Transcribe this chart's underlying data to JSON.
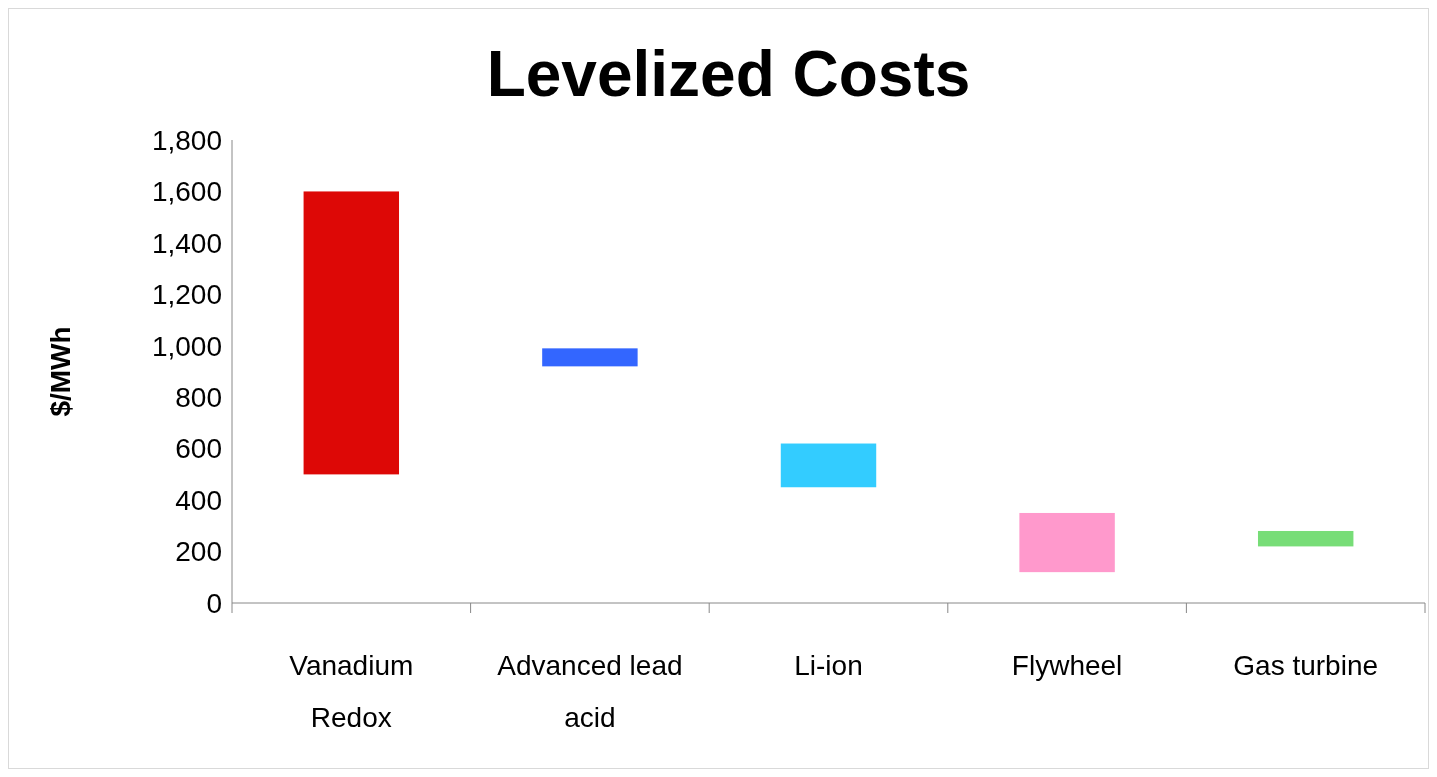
{
  "chart_data": {
    "type": "bar",
    "title": "Levelized Costs",
    "ylabel": "$/MWh",
    "categories": [
      "Vanadium Redox",
      "Advanced lead acid",
      "Li-ion",
      "Flywheel",
      "Gas turbine"
    ],
    "base": [
      500,
      920,
      450,
      120,
      220
    ],
    "values": [
      1100,
      70,
      170,
      230,
      60
    ],
    "colors": [
      "#dd0806",
      "#3366ff",
      "#33ccff",
      "#ff99cc",
      "#77dd77"
    ],
    "ylim": [
      0,
      1800
    ],
    "yticks": [
      {
        "value": 0,
        "label": "0"
      },
      {
        "value": 200,
        "label": "200"
      },
      {
        "value": 400,
        "label": "400"
      },
      {
        "value": 600,
        "label": "600"
      },
      {
        "value": 800,
        "label": "800"
      },
      {
        "value": 1000,
        "label": "1,000"
      },
      {
        "value": 1200,
        "label": "1,200"
      },
      {
        "value": 1400,
        "label": "1,400"
      },
      {
        "value": 1600,
        "label": "1,600"
      },
      {
        "value": 1800,
        "label": "1,800"
      }
    ],
    "grid": false
  }
}
